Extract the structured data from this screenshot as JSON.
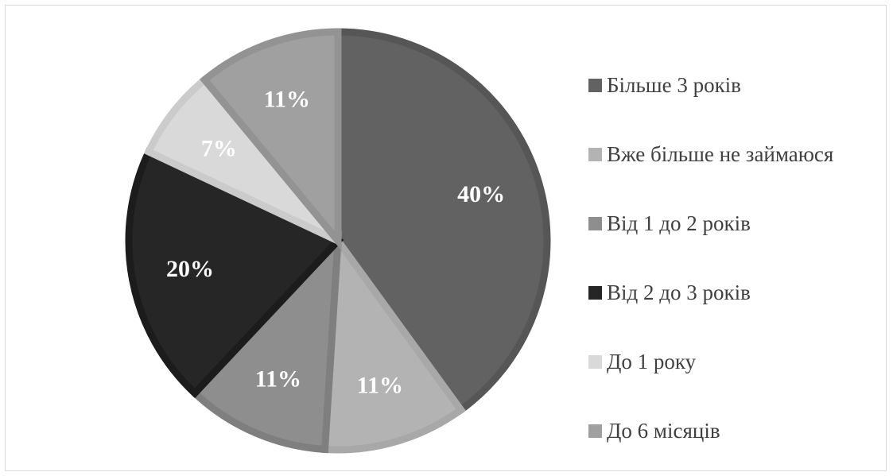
{
  "chart_data": {
    "type": "pie",
    "start_angle_deg": 0,
    "direction": "clockwise",
    "border_color": "#8f8f8f",
    "slices": [
      {
        "name": "Більше 3 років",
        "value": 40,
        "label": "40%",
        "color": "#626262",
        "stroke": "#565656"
      },
      {
        "name": "Вже більше не займаюся",
        "value": 11,
        "label": "11%",
        "color": "#b3b3b3",
        "stroke": "#a8a8a8"
      },
      {
        "name": "Від 1 до 2 років",
        "value": 11,
        "label": "11%",
        "color": "#8e8e8e",
        "stroke": "#7f7f7f"
      },
      {
        "name": "Від 2 до 3 років",
        "value": 20,
        "label": "20%",
        "color": "#262626",
        "stroke": "#1c1c1c"
      },
      {
        "name": "До 1 року",
        "value": 7,
        "label": "7%",
        "color": "#d9d9d9",
        "stroke": "#cbcbcb"
      },
      {
        "name": "До 6 місяців",
        "value": 11,
        "label": "11%",
        "color": "#a0a0a0",
        "stroke": "#939393"
      }
    ],
    "legend_position": "right"
  }
}
